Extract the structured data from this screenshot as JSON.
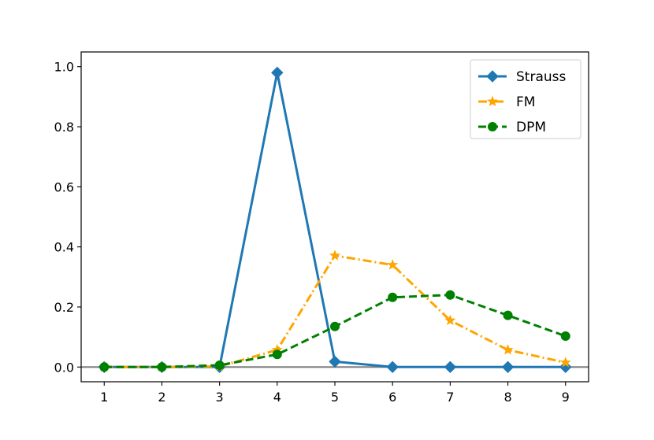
{
  "chart_data": {
    "type": "line",
    "title": "",
    "xlabel": "",
    "ylabel": "",
    "x": [
      1,
      2,
      3,
      4,
      5,
      6,
      7,
      8,
      9
    ],
    "xlim": [
      0.6,
      9.4
    ],
    "ylim": [
      -0.049,
      1.049
    ],
    "xticks": [
      1,
      2,
      3,
      4,
      5,
      6,
      7,
      8,
      9
    ],
    "yticks": [
      0.0,
      0.2,
      0.4,
      0.6,
      0.8,
      1.0
    ],
    "ytick_labels": [
      "0.0",
      "0.2",
      "0.4",
      "0.6",
      "0.8",
      "1.0"
    ],
    "xtick_labels": [
      "1",
      "2",
      "3",
      "4",
      "5",
      "6",
      "7",
      "8",
      "9"
    ],
    "grid": false,
    "reference_line": {
      "y": 0,
      "color": "#808080"
    },
    "legend": {
      "position": "top-right"
    },
    "series": [
      {
        "name": "Strauss",
        "color": "#1f77b4",
        "linestyle": "solid",
        "marker": "diamond",
        "values": [
          0.0,
          0.0,
          0.0,
          0.98,
          0.018,
          0.0,
          0.0,
          0.0,
          0.0
        ]
      },
      {
        "name": "FM",
        "color": "#ffa500",
        "linestyle": "dashdot",
        "marker": "star",
        "values": [
          0.0,
          0.0,
          0.002,
          0.057,
          0.371,
          0.34,
          0.155,
          0.057,
          0.015
        ]
      },
      {
        "name": "DPM",
        "color": "#008000",
        "linestyle": "dashed",
        "marker": "circle",
        "values": [
          0.0,
          0.0,
          0.006,
          0.042,
          0.135,
          0.232,
          0.24,
          0.172,
          0.103
        ]
      }
    ]
  }
}
